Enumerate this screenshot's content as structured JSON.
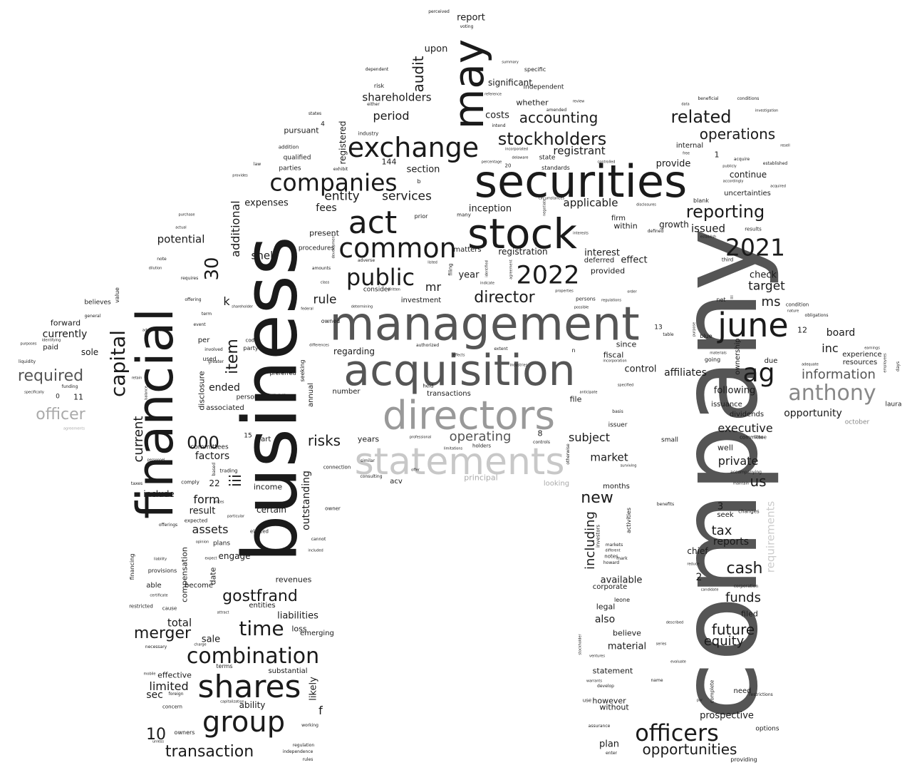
{
  "words": [
    "company",
    "business",
    "securities",
    "financial",
    "management",
    "acquisition",
    "directors",
    "may",
    "stock",
    "statements",
    "shares",
    "act",
    "exchange",
    "common",
    "companies",
    "combination",
    "group",
    "officers",
    "2022",
    "2021",
    "june",
    "public",
    "stockholders",
    "anthony",
    "reporting",
    "capital",
    "related",
    "operations",
    "ag",
    "director",
    "accounting",
    "required",
    "officer",
    "audit",
    "time",
    "gostfrand",
    "merger",
    "transaction",
    "opportunities",
    "future",
    "equity",
    "cash",
    "funds",
    "tax",
    "executive",
    "private",
    "us",
    "new",
    "including",
    "information",
    "requirements",
    "operating",
    "risks",
    "outstanding",
    "item",
    "additional",
    "current",
    "000",
    "30",
    "iii",
    "form",
    "assets",
    "potential",
    "shell",
    "rule",
    "mr",
    "ms",
    "inc",
    "board",
    "target",
    "check",
    "year",
    "interest",
    "registration",
    "inception",
    "applicable",
    "issued",
    "continue",
    "provide",
    "registrant",
    "costs",
    "whether",
    "significant",
    "upon",
    "report",
    "period",
    "shareholders",
    "entity",
    "services",
    "section",
    "fees",
    "expenses",
    "registered",
    "pursuant",
    "qualified",
    "parties",
    "affiliates",
    "following",
    "opportunity",
    "dividends",
    "control",
    "fiscal",
    "since",
    "provided",
    "effect",
    "firm",
    "within",
    "growth",
    "uncertainties",
    "internal",
    "subject",
    "market",
    "months",
    "available",
    "also",
    "legal",
    "material",
    "statement",
    "however",
    "without",
    "plan",
    "believe",
    "reports",
    "chief",
    "prospective",
    "filed",
    "need",
    "options",
    "limited",
    "sec",
    "10",
    "effective",
    "likely",
    "substantial",
    "ability",
    "f",
    "total",
    "sale",
    "liabilities",
    "loss",
    "emerging",
    "entities",
    "revenues",
    "certain",
    "income",
    "result",
    "engage",
    "plans",
    "compensation",
    "date",
    "factors",
    "committees",
    "associated",
    "ended",
    "disclosure",
    "include",
    "currently",
    "forward",
    "sole",
    "paid",
    "believes",
    "value",
    "k",
    "present",
    "procedures",
    "matters",
    "investment",
    "consider",
    "regarding",
    "number",
    "transactions",
    "principal",
    "looking",
    "acv",
    "years",
    "part",
    "15",
    "22",
    "8",
    "11",
    "0",
    "3",
    "2",
    "12",
    "13",
    "144",
    "1",
    "4",
    "october",
    "laura",
    "experience",
    "resources",
    "due",
    "condition",
    "obligations",
    "accompanying",
    "ownership",
    "issuance",
    "committee",
    "well",
    "small",
    "issuer",
    "file",
    "deferred",
    "held",
    "authorized",
    "owned",
    "non",
    "preferred",
    "person",
    "seeking",
    "annual",
    "similar",
    "consulting",
    "connection",
    "owner",
    "elected",
    "cannot",
    "included",
    "regulation",
    "independence",
    "working",
    "rules",
    "owners",
    "concern",
    "foreign",
    "necessary",
    "terms",
    "able",
    "become",
    "provisions",
    "financing",
    "restricted",
    "cause",
    "comply",
    "taxes",
    "trading",
    "based",
    "used",
    "per",
    "involved",
    "event",
    "term",
    "party",
    "code",
    "greater",
    "liquidity",
    "funding",
    "agreements",
    "note",
    "requires",
    "prior",
    "many",
    "adverse",
    "establish",
    "results",
    "blank",
    "acquire",
    "established",
    "standards",
    "state",
    "intend",
    "amended",
    "specific",
    "independent",
    "summary",
    "perceived",
    "voting",
    "dependent",
    "risk",
    "industry",
    "addition",
    "either",
    "law",
    "exhibit",
    "states",
    "provides",
    "purchase",
    "actual",
    "seek",
    "changes",
    "benefits",
    "corporation",
    "candidate",
    "complete",
    "name",
    "stockholder",
    "markets",
    "investors",
    "notes",
    "corporate",
    "leone",
    "activities",
    "mark",
    "howard",
    "develop",
    "use",
    "assurance",
    "enter",
    "providing",
    "unless",
    "mobile",
    "offerings",
    "expected",
    "opinion",
    "liability",
    "certificate",
    "retain",
    "balance",
    "personnel",
    "identifying",
    "purposes",
    "specifically",
    "general",
    "offering",
    "administrative",
    "shareholder",
    "dilution",
    "agreement",
    "filing",
    "listed",
    "class",
    "amounts",
    "federal",
    "determining",
    "differences",
    "effects",
    "extent",
    "industries",
    "professional",
    "otherwise",
    "controls",
    "holders",
    "limitations",
    "basis",
    "specified",
    "anticipate",
    "incorporation",
    "disclosures",
    "defined",
    "order",
    "regulations",
    "persons",
    "possible",
    "interests",
    "properties",
    "circumstances",
    "third",
    "net",
    "ii",
    "blue",
    "going",
    "table",
    "materials",
    "purpose",
    "laws",
    "earnings",
    "days",
    "employees",
    "nature",
    "investigation",
    "conditions",
    "beneficial",
    "data",
    "review",
    "resell",
    "acquired",
    "controlled",
    "accordingly",
    "publicly",
    "free",
    "incorporated",
    "delaware",
    "percentage",
    "reference",
    "20",
    "b",
    "n",
    "indicate",
    "identified",
    "negotiate",
    "development",
    "written",
    "ability",
    "necessarily",
    "maintain",
    "surviving",
    "different",
    "result",
    "adequate",
    "described",
    "evaluate",
    "series",
    "warrants",
    "ventures",
    "reduce",
    "par",
    "restrictions",
    "attract",
    "charge",
    "expect",
    "prices",
    "particular",
    "offer",
    "capitalization"
  ]
}
